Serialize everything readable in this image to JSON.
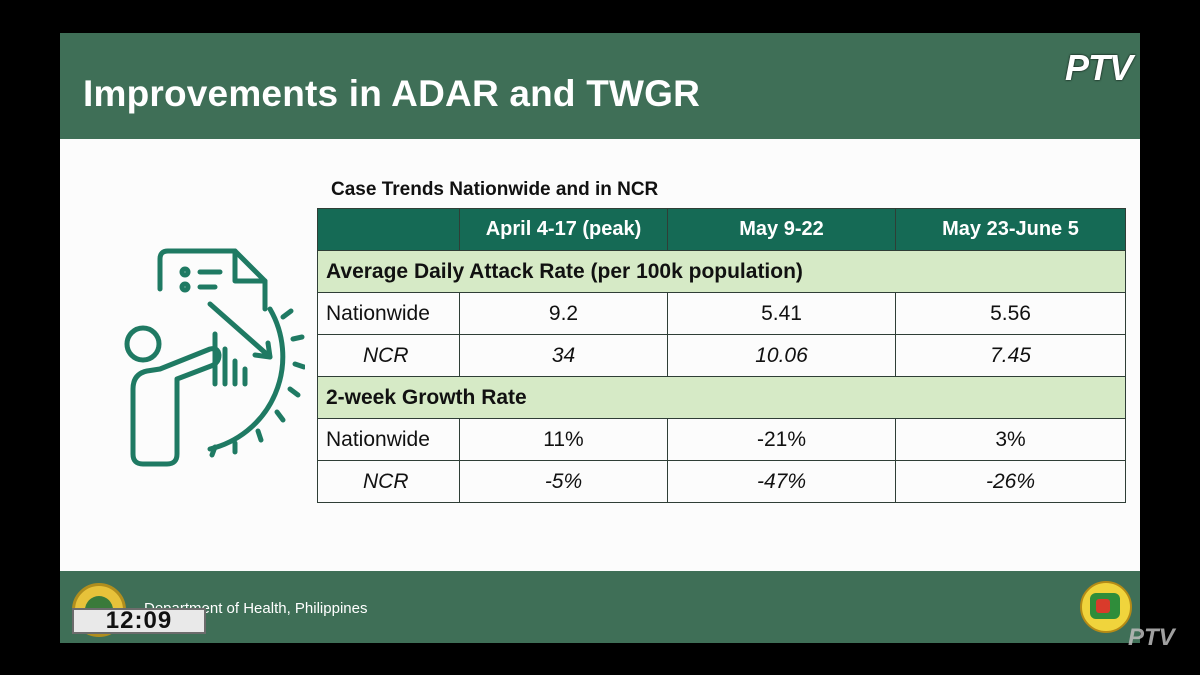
{
  "slide": {
    "title": "Improvements in ADAR and TWGR",
    "brand_logo": "PTV"
  },
  "table": {
    "title": "Case Trends Nationwide and in NCR",
    "headers": [
      "",
      "April 4-17 (peak)",
      "May 9-22",
      "May 23-June 5"
    ],
    "sections": [
      {
        "label": "Average Daily Attack Rate (per 100k population)",
        "rows": [
          {
            "label": "Nationwide",
            "values": [
              "9.2",
              "5.41",
              "5.56"
            ]
          },
          {
            "label": "NCR",
            "values": [
              "34",
              "10.06",
              "7.45"
            ]
          }
        ]
      },
      {
        "label": "2-week Growth Rate",
        "rows": [
          {
            "label": "Nationwide",
            "values": [
              "11%",
              "-21%",
              "3%"
            ]
          },
          {
            "label": "NCR",
            "values": [
              "-5%",
              "-47%",
              "-26%"
            ]
          }
        ]
      }
    ]
  },
  "footer": {
    "organization": "Department of Health, Philippines"
  },
  "broadcast": {
    "clock": "12:09",
    "bug": "PTV"
  },
  "colors": {
    "header_green": "#3f6f57",
    "table_header": "#156a55",
    "section_bg": "#d6eac6",
    "icon_green": "#1f7a63"
  },
  "icons": [
    "report-analysis-icon",
    "doh-seal-icon",
    "ptv-badge-icon"
  ]
}
